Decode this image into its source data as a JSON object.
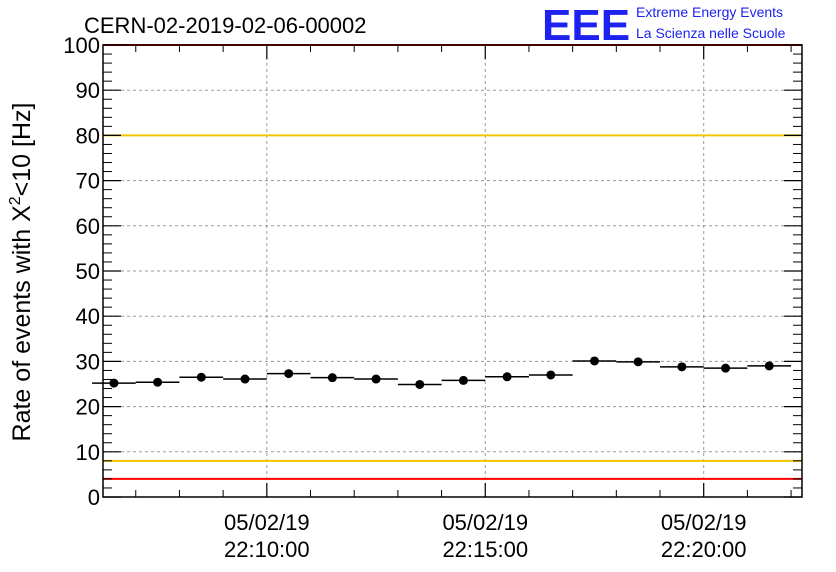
{
  "chart_data": {
    "type": "scatter",
    "title": "CERN-02-2019-02-06-00002",
    "ylabel": "Rate of events with X²<10 [Hz]",
    "ylabel_parts": {
      "before": "Rate of events with X",
      "sup": "2",
      "after": "<10 [Hz]"
    },
    "xlabel": "",
    "ylim": [
      0,
      100
    ],
    "yticks": [
      0,
      10,
      20,
      30,
      40,
      50,
      60,
      70,
      80,
      90,
      100
    ],
    "xlim": [
      "05/02/19 22:06:15",
      "05/02/19 22:22:15"
    ],
    "xticks": [
      {
        "time": "05/02/19 22:10:00",
        "date_label": "05/02/19",
        "time_label": "22:10:00"
      },
      {
        "time": "05/02/19 22:15:00",
        "date_label": "05/02/19",
        "time_label": "22:15:00"
      },
      {
        "time": "05/02/19 22:20:00",
        "date_label": "05/02/19",
        "time_label": "22:20:00"
      }
    ],
    "grid": true,
    "series": [
      {
        "marker": "filled-circle",
        "color": "#000000",
        "bin_halfwidth_seconds": 30,
        "points": [
          {
            "x": "05/02/19 22:06:30",
            "y": 25.2
          },
          {
            "x": "05/02/19 22:07:30",
            "y": 25.4
          },
          {
            "x": "05/02/19 22:08:30",
            "y": 26.5
          },
          {
            "x": "05/02/19 22:09:30",
            "y": 26.1
          },
          {
            "x": "05/02/19 22:10:30",
            "y": 27.3
          },
          {
            "x": "05/02/19 22:11:30",
            "y": 26.4
          },
          {
            "x": "05/02/19 22:12:30",
            "y": 26.1
          },
          {
            "x": "05/02/19 22:13:30",
            "y": 24.9
          },
          {
            "x": "05/02/19 22:14:30",
            "y": 25.8
          },
          {
            "x": "05/02/19 22:15:30",
            "y": 26.6
          },
          {
            "x": "05/02/19 22:16:30",
            "y": 27.0
          },
          {
            "x": "05/02/19 22:17:30",
            "y": 30.1
          },
          {
            "x": "05/02/19 22:18:30",
            "y": 29.9
          },
          {
            "x": "05/02/19 22:19:30",
            "y": 28.8
          },
          {
            "x": "05/02/19 22:20:30",
            "y": 28.5
          },
          {
            "x": "05/02/19 22:21:30",
            "y": 29.0
          }
        ]
      }
    ],
    "reference_lines": [
      {
        "y": 100,
        "color": "#ff0000"
      },
      {
        "y": 80,
        "color": "#f5c400"
      },
      {
        "y": 8,
        "color": "#f5c400"
      },
      {
        "y": 4,
        "color": "#ff0000"
      }
    ]
  },
  "logo": {
    "mark": "EEE",
    "line1": "Extreme Energy Events",
    "line2": "La Scienza nelle Scuole",
    "color": "#1e22f0"
  }
}
